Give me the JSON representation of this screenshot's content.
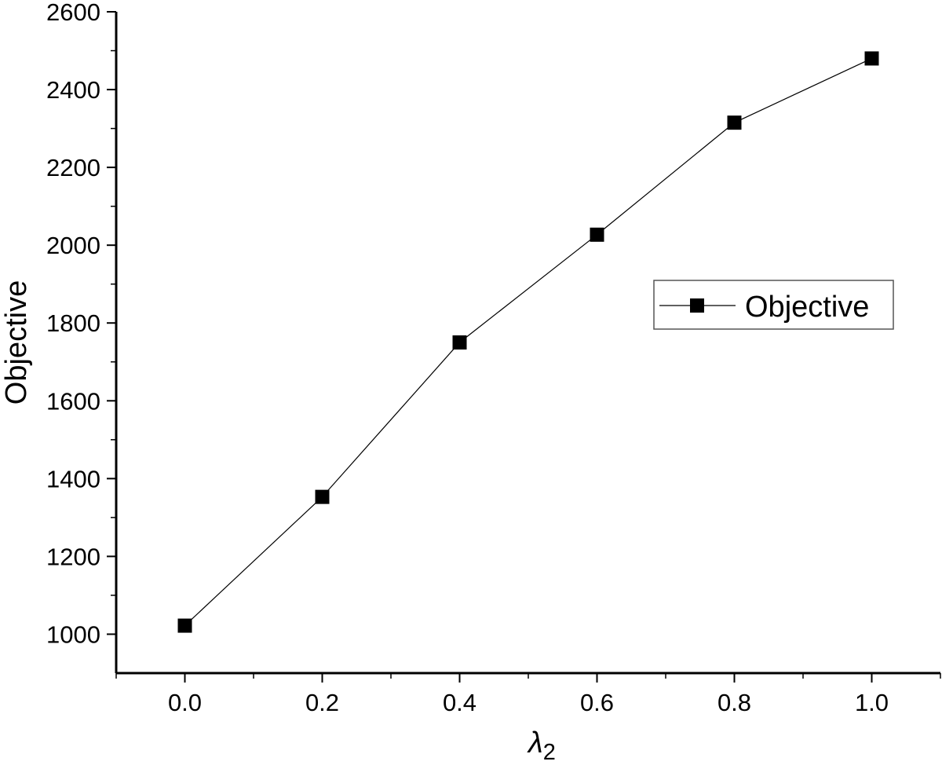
{
  "chart_data": {
    "type": "line",
    "x": [
      0.0,
      0.2,
      0.4,
      0.6,
      0.8,
      1.0
    ],
    "series": [
      {
        "name": "Objective",
        "values": [
          1022,
          1353,
          1750,
          2027,
          2315,
          2480
        ]
      }
    ],
    "xlabel": "λ",
    "xlabel_subscript": "2",
    "ylabel": "Objective",
    "xlim": [
      -0.1,
      1.1
    ],
    "ylim": [
      900,
      2600
    ],
    "xticks": [
      0.0,
      0.2,
      0.4,
      0.6,
      0.8,
      1.0
    ],
    "xtick_labels": [
      "0.0",
      "0.2",
      "0.4",
      "0.6",
      "0.8",
      "1.0"
    ],
    "yticks": [
      1000,
      1200,
      1400,
      1600,
      1800,
      2000,
      2200,
      2400,
      2600
    ],
    "ytick_labels": [
      "1000",
      "1200",
      "1400",
      "1600",
      "1800",
      "2000",
      "2200",
      "2400",
      "2600"
    ],
    "grid": false,
    "legend": {
      "position": "right",
      "entries": [
        "Objective"
      ]
    },
    "marker": "square",
    "colors": {
      "line": "#000000",
      "marker": "#000000",
      "axis": "#000000",
      "legend_border": "#555555"
    }
  }
}
